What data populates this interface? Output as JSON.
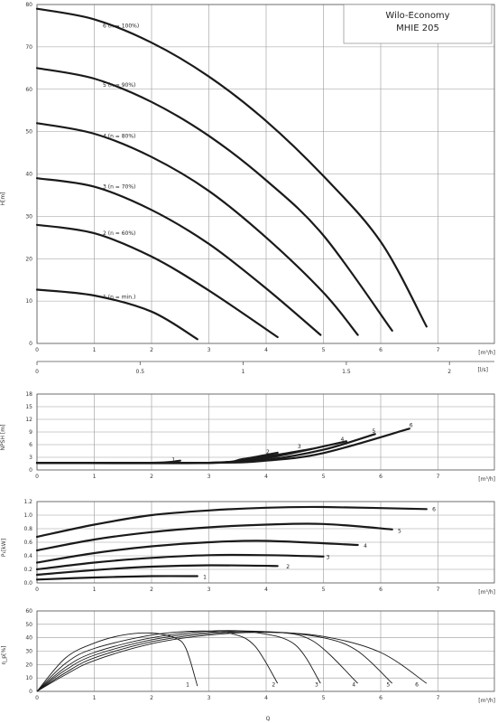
{
  "title": {
    "line1": "Wilo-Economy",
    "line2": "MHIE 205"
  },
  "chart_data": [
    {
      "name": "head",
      "type": "line",
      "ylabel": "H[m]",
      "xunit": "[m³/h]",
      "ylim": [
        0,
        80
      ],
      "xlim": [
        0,
        8
      ],
      "yticks": [
        0,
        10,
        20,
        30,
        40,
        50,
        60,
        70,
        80
      ],
      "xticks": [
        0,
        1,
        2,
        3,
        4,
        5,
        6,
        7
      ],
      "series": [
        {
          "label": "1 (n = min.)",
          "points": [
            [
              0,
              12.7
            ],
            [
              1,
              11.3
            ],
            [
              2,
              7.5
            ],
            [
              2.8,
              1
            ]
          ]
        },
        {
          "label": "2 (n = 60%)",
          "points": [
            [
              0,
              28
            ],
            [
              1,
              26
            ],
            [
              2,
              20.5
            ],
            [
              3,
              12.5
            ],
            [
              4.2,
              1.5
            ]
          ]
        },
        {
          "label": "3 (n = 70%)",
          "points": [
            [
              0,
              39
            ],
            [
              1,
              37
            ],
            [
              2,
              31.5
            ],
            [
              3,
              23.5
            ],
            [
              4,
              13
            ],
            [
              4.95,
              2
            ]
          ]
        },
        {
          "label": "4 (n = 80%)",
          "points": [
            [
              0,
              52
            ],
            [
              1,
              49.5
            ],
            [
              2,
              44
            ],
            [
              3,
              36
            ],
            [
              4,
              25
            ],
            [
              5,
              12
            ],
            [
              5.6,
              2
            ]
          ]
        },
        {
          "label": "5 (n = 90%)",
          "points": [
            [
              0,
              65
            ],
            [
              1,
              62.5
            ],
            [
              2,
              57
            ],
            [
              3,
              49
            ],
            [
              4,
              38.5
            ],
            [
              5,
              25.5
            ],
            [
              6.2,
              3
            ]
          ]
        },
        {
          "label": "6 (n = 100%)",
          "points": [
            [
              0,
              79
            ],
            [
              1,
              76.5
            ],
            [
              2,
              71
            ],
            [
              3,
              63
            ],
            [
              4,
              52.5
            ],
            [
              5,
              39.5
            ],
            [
              6,
              24
            ],
            [
              6.8,
              4
            ]
          ]
        }
      ]
    },
    {
      "name": "flow_ls",
      "type": "axis",
      "xunit": "[l/s]",
      "xticks": [
        0,
        0.5,
        1,
        1.5,
        2
      ]
    },
    {
      "name": "npsh",
      "type": "line",
      "ylabel": "NPSH [m]",
      "xunit": "[m³/h]",
      "ylim": [
        0,
        18
      ],
      "xlim": [
        0,
        8
      ],
      "yticks": [
        0,
        3,
        6,
        9,
        12,
        15,
        18
      ],
      "xticks": [
        0,
        1,
        2,
        3,
        4,
        5,
        6,
        7
      ],
      "series": [
        {
          "label": "1",
          "points": [
            [
              0,
              1.7
            ],
            [
              2,
              1.7
            ],
            [
              2.5,
              2.2
            ]
          ]
        },
        {
          "label": "2",
          "points": [
            [
              0,
              1.7
            ],
            [
              3,
              1.7
            ],
            [
              3.6,
              2.6
            ],
            [
              4.2,
              4.1
            ]
          ]
        },
        {
          "label": "3",
          "points": [
            [
              0,
              1.7
            ],
            [
              3,
              1.7
            ],
            [
              4,
              3.2
            ],
            [
              4.8,
              5
            ]
          ]
        },
        {
          "label": "4",
          "points": [
            [
              0,
              1.7
            ],
            [
              3,
              1.7
            ],
            [
              4,
              2.8
            ],
            [
              5.4,
              6.8
            ]
          ]
        },
        {
          "label": "5",
          "points": [
            [
              0,
              1.7
            ],
            [
              3,
              1.7
            ],
            [
              4,
              2.4
            ],
            [
              5,
              4.8
            ],
            [
              5.9,
              8.5
            ]
          ]
        },
        {
          "label": "6",
          "points": [
            [
              0,
              1.7
            ],
            [
              3,
              1.7
            ],
            [
              4,
              2.2
            ],
            [
              5,
              4
            ],
            [
              6.5,
              9.8
            ]
          ]
        }
      ]
    },
    {
      "name": "power",
      "type": "line",
      "ylabel": "P₁[kW]",
      "xunit": "[m³/h]",
      "ylim": [
        0,
        1.2
      ],
      "xlim": [
        0,
        8
      ],
      "yticks": [
        0,
        0.2,
        0.4,
        0.6,
        0.8,
        1.0,
        1.2
      ],
      "xticks": [
        0,
        1,
        2,
        3,
        4,
        5,
        6,
        7
      ],
      "series": [
        {
          "label": "1",
          "points": [
            [
              0,
              0.05
            ],
            [
              1,
              0.08
            ],
            [
              2,
              0.1
            ],
            [
              2.8,
              0.1
            ]
          ]
        },
        {
          "label": "2",
          "points": [
            [
              0,
              0.12
            ],
            [
              1,
              0.19
            ],
            [
              2,
              0.24
            ],
            [
              3,
              0.26
            ],
            [
              4.2,
              0.25
            ]
          ]
        },
        {
          "label": "3",
          "points": [
            [
              0,
              0.2
            ],
            [
              1,
              0.3
            ],
            [
              2,
              0.37
            ],
            [
              3,
              0.41
            ],
            [
              4,
              0.41
            ],
            [
              5,
              0.39
            ]
          ]
        },
        {
          "label": "4",
          "points": [
            [
              0,
              0.3
            ],
            [
              1,
              0.44
            ],
            [
              2,
              0.54
            ],
            [
              3,
              0.6
            ],
            [
              4,
              0.62
            ],
            [
              5.6,
              0.56
            ]
          ]
        },
        {
          "label": "5",
          "points": [
            [
              0,
              0.48
            ],
            [
              1,
              0.64
            ],
            [
              2,
              0.75
            ],
            [
              3,
              0.82
            ],
            [
              4,
              0.86
            ],
            [
              5,
              0.87
            ],
            [
              6.2,
              0.79
            ]
          ]
        },
        {
          "label": "6",
          "points": [
            [
              0,
              0.68
            ],
            [
              1,
              0.86
            ],
            [
              2,
              1.0
            ],
            [
              3,
              1.07
            ],
            [
              4,
              1.11
            ],
            [
              5,
              1.12
            ],
            [
              6.8,
              1.09
            ]
          ]
        }
      ]
    },
    {
      "name": "efficiency",
      "type": "line",
      "ylabel": "η_p[%]",
      "xlabel": "Q",
      "xunit": "[m³/h]",
      "ylim": [
        0,
        60
      ],
      "xlim": [
        0,
        8
      ],
      "yticks": [
        0,
        10,
        20,
        30,
        40,
        50,
        60
      ],
      "xticks": [
        0,
        1,
        2,
        3,
        4,
        5,
        6,
        7
      ],
      "series": [
        {
          "label": "1",
          "points": [
            [
              0,
              0
            ],
            [
              0.5,
              25
            ],
            [
              1,
              36
            ],
            [
              1.5,
              42
            ],
            [
              2,
              43.5
            ],
            [
              2.4,
              40
            ],
            [
              2.6,
              32
            ],
            [
              2.8,
              4
            ]
          ]
        },
        {
          "label": "2",
          "points": [
            [
              0,
              0
            ],
            [
              0.5,
              21
            ],
            [
              1,
              32
            ],
            [
              2,
              42
            ],
            [
              2.8,
              45
            ],
            [
              3.4,
              43
            ],
            [
              3.8,
              34
            ],
            [
              4.2,
              6
            ]
          ]
        },
        {
          "label": "3",
          "points": [
            [
              0,
              0
            ],
            [
              0.5,
              18
            ],
            [
              1,
              29
            ],
            [
              2,
              40
            ],
            [
              3,
              45
            ],
            [
              3.8,
              44
            ],
            [
              4.5,
              35
            ],
            [
              4.95,
              6
            ]
          ]
        },
        {
          "label": "4",
          "points": [
            [
              0,
              0
            ],
            [
              0.5,
              16
            ],
            [
              1,
              27
            ],
            [
              2,
              38.5
            ],
            [
              3,
              44
            ],
            [
              4,
              44.5
            ],
            [
              4.8,
              38
            ],
            [
              5.6,
              6
            ]
          ]
        },
        {
          "label": "5",
          "points": [
            [
              0,
              0
            ],
            [
              0.5,
              14
            ],
            [
              1,
              25
            ],
            [
              2,
              37
            ],
            [
              3,
              43
            ],
            [
              4,
              44.5
            ],
            [
              5,
              40
            ],
            [
              5.6,
              30
            ],
            [
              6.2,
              6
            ]
          ]
        },
        {
          "label": "6",
          "points": [
            [
              0,
              0
            ],
            [
              0.5,
              12.5
            ],
            [
              1,
              23
            ],
            [
              2,
              35.5
            ],
            [
              3,
              42
            ],
            [
              4,
              44
            ],
            [
              5,
              41
            ],
            [
              6,
              29
            ],
            [
              6.8,
              6
            ]
          ]
        }
      ]
    }
  ]
}
